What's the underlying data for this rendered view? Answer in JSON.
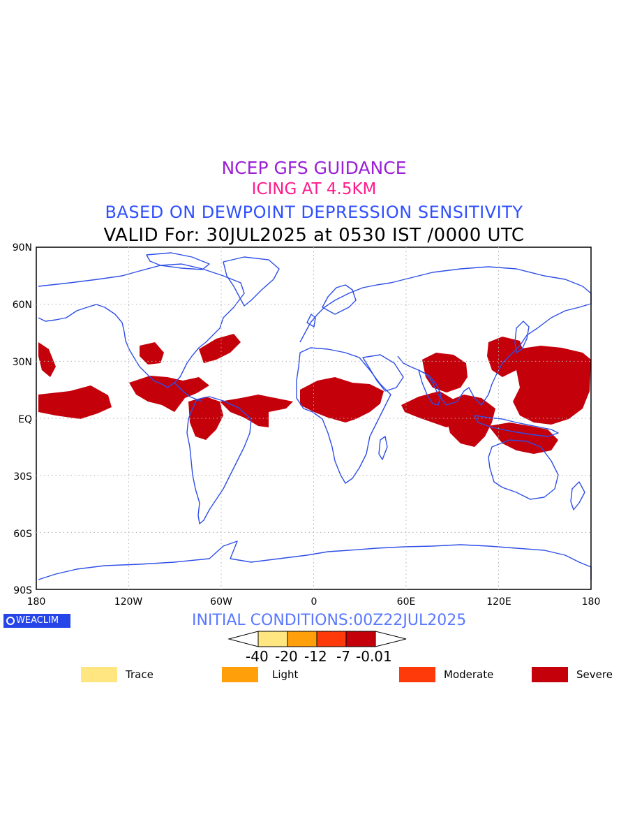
{
  "titles": {
    "line1": "NCEP GFS GUIDANCE",
    "line2": "ICING AT 4.5KM",
    "line3": "BASED ON DEWPOINT DEPRESSION SENSITIVITY",
    "line4": "VALID For: 30JUL2025 at 0530 IST /0000 UTC"
  },
  "axes": {
    "lat_labels": [
      "90N",
      "60N",
      "30N",
      "EQ",
      "30S",
      "60S",
      "90S"
    ],
    "lon_labels": [
      "180",
      "120W",
      "60W",
      "0",
      "60E",
      "120E",
      "180"
    ]
  },
  "badge": {
    "text": "WEACLIM"
  },
  "initial_conditions": "INITIAL CONDITIONS:00Z22JUL2025",
  "colorbar": {
    "ticks": [
      "-40",
      "-20",
      "-12",
      "-7",
      "-0.01"
    ],
    "colors": [
      "#ffe680",
      "#ff9f0a",
      "#ff3a0a",
      "#c4000b"
    ]
  },
  "legend": [
    {
      "label": "Trace",
      "color": "#ffe680"
    },
    {
      "label": "Light",
      "color": "#ff9f0a"
    },
    {
      "label": "Moderate",
      "color": "#ff3a0a"
    },
    {
      "label": "Severe",
      "color": "#c4000b"
    }
  ],
  "colors": {
    "coastline": "#2e4fe6",
    "icing_fill": "#c4000b",
    "grid": "#b0b0b0"
  }
}
